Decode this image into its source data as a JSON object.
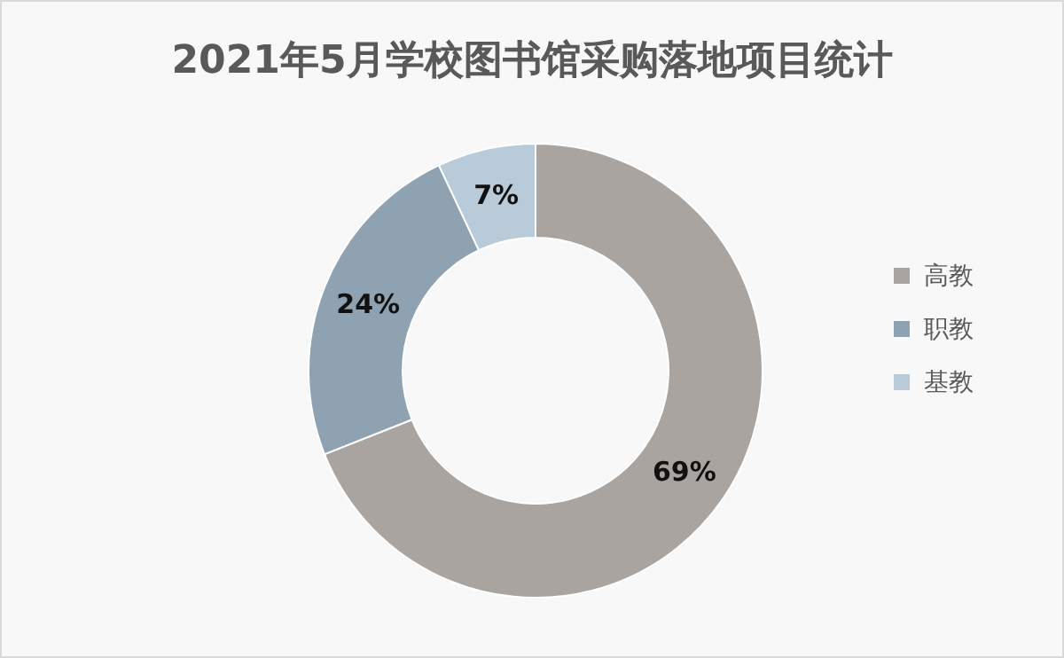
{
  "chart_data": {
    "type": "donut",
    "title": "2021年5月学校图书馆采购落地项目统计",
    "categories": [
      "高教",
      "职教",
      "基教"
    ],
    "values": [
      69,
      24,
      7
    ],
    "colors": [
      "#a9a49f",
      "#8fa2b1",
      "#b9cbd8"
    ],
    "value_labels": [
      "69%",
      "24%",
      "7%"
    ],
    "legend": "right"
  }
}
